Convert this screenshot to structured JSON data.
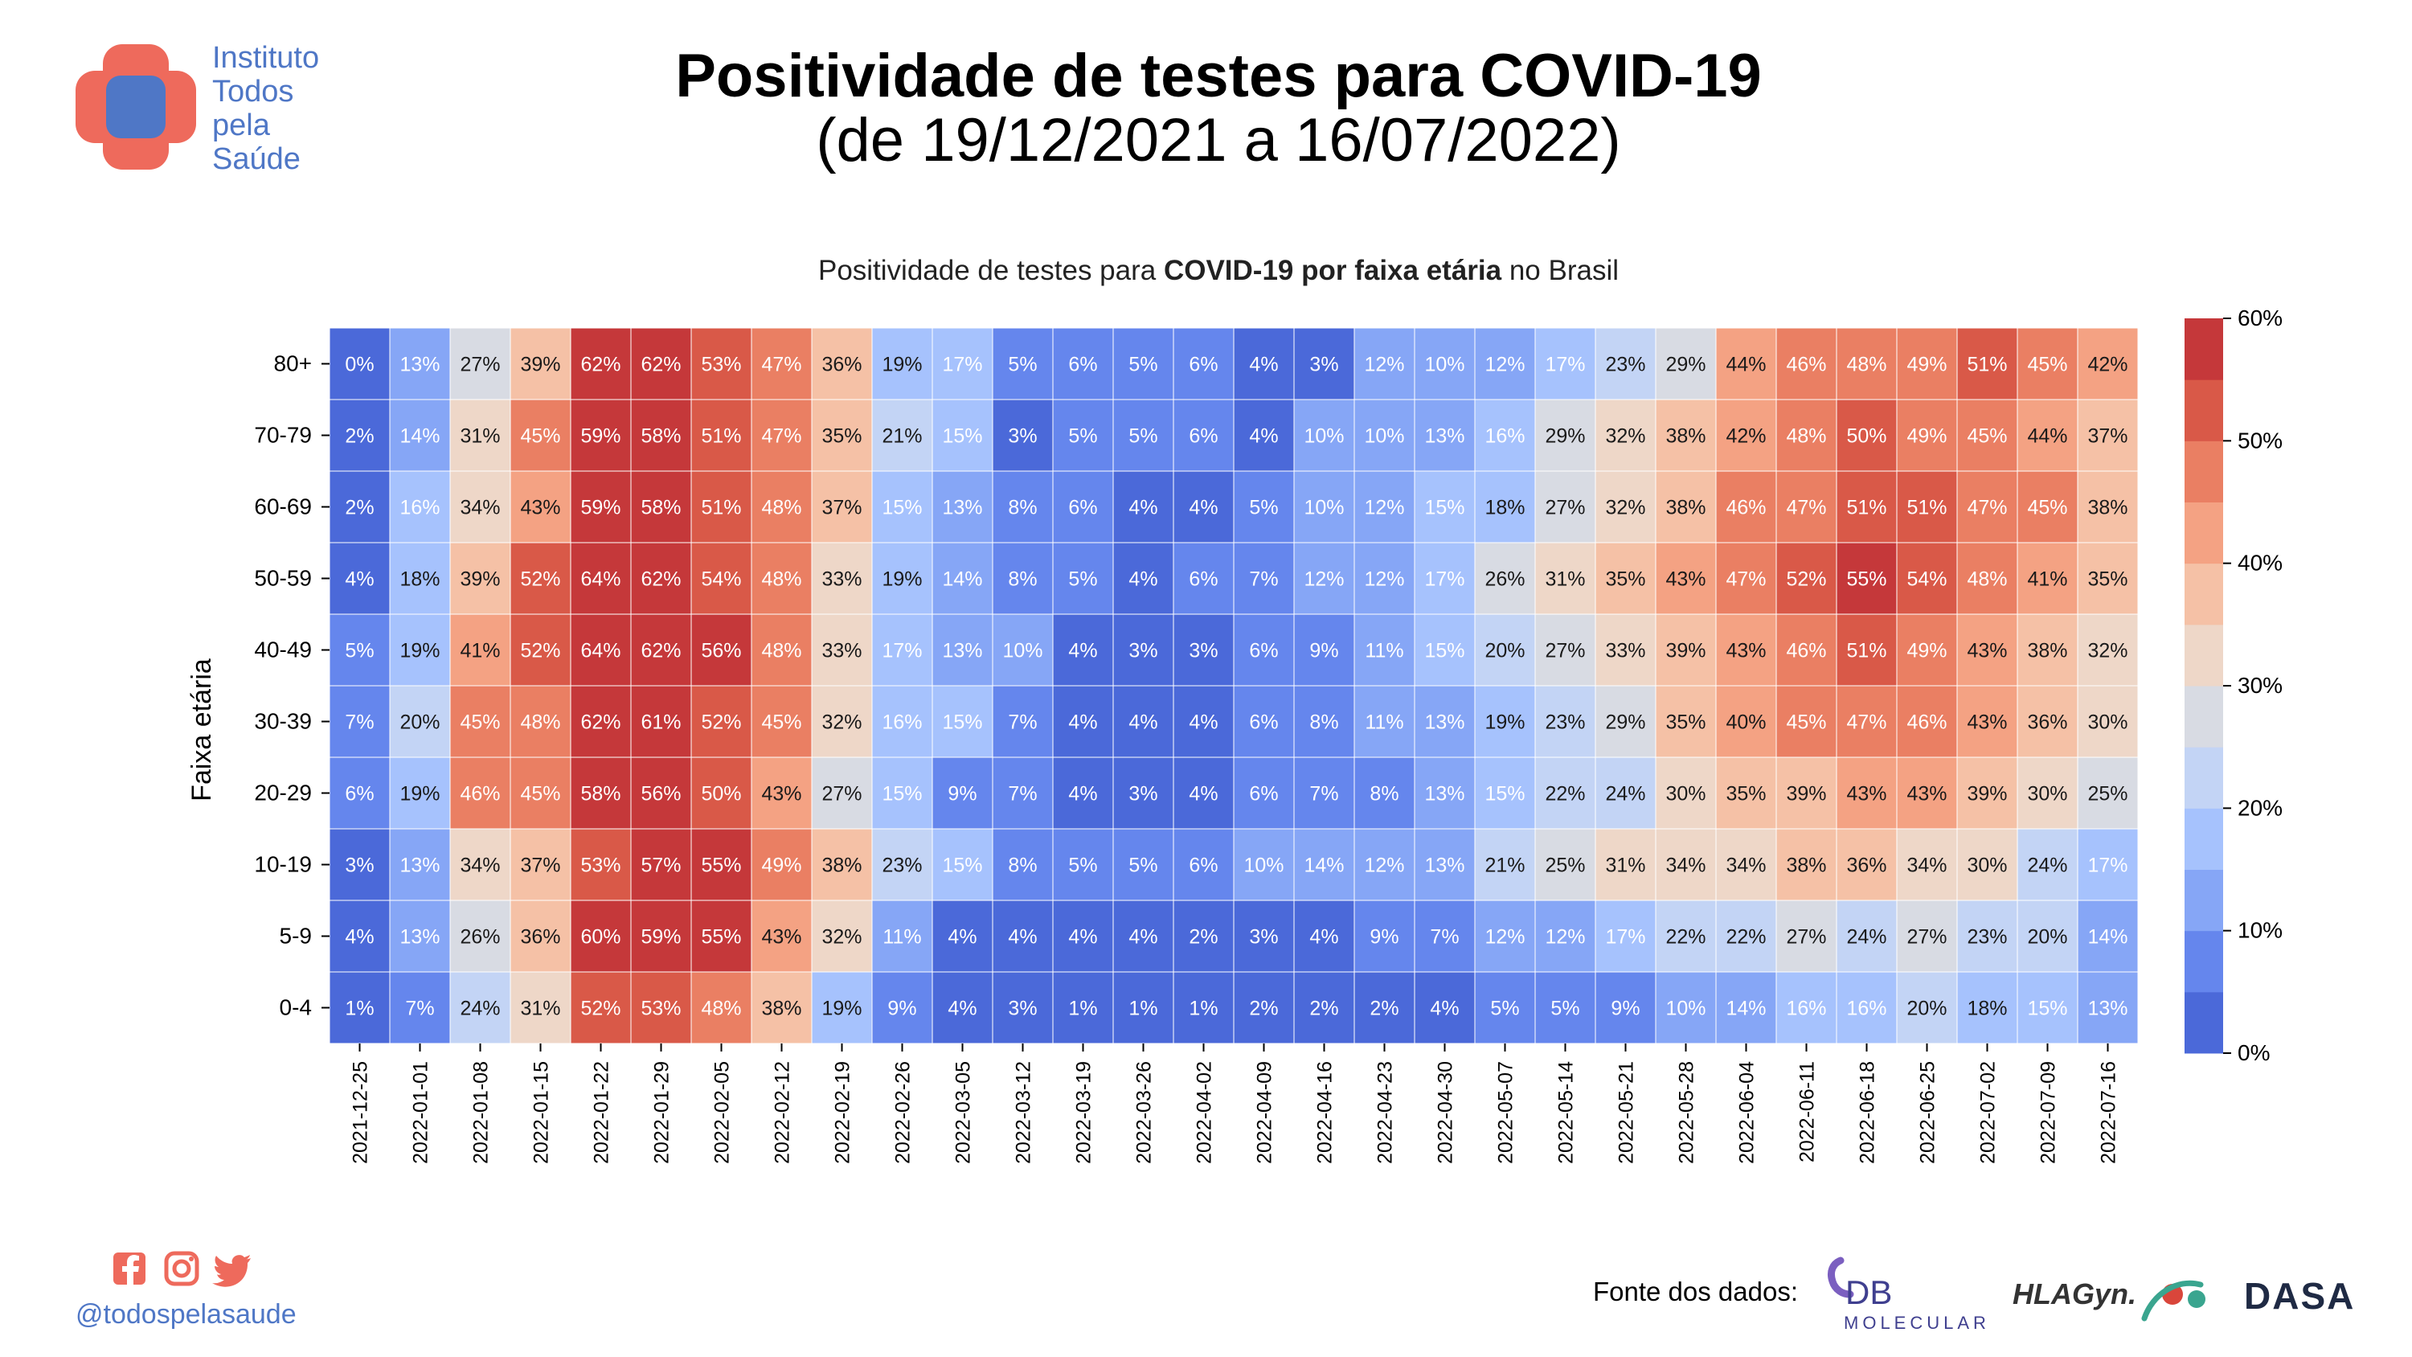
{
  "org": {
    "name_lines": [
      "Instituto",
      "Todos",
      "pela",
      "Saúde"
    ],
    "logo_colors": {
      "cross": "#ee6a5c",
      "center": "#4f77c6"
    }
  },
  "header": {
    "title": "Positividade de testes para COVID-19",
    "subtitle": "(de 19/12/2021 a 16/07/2022)"
  },
  "social": {
    "handle": "@todospelasaude",
    "icons": [
      "facebook-icon",
      "instagram-icon",
      "twitter-icon"
    ],
    "icon_color": "#ee6a5c"
  },
  "footer": {
    "source_label": "Fonte dos dados:",
    "logos": {
      "db": {
        "text": "DB",
        "subtext": "MOLECULAR"
      },
      "hlagyn": {
        "text": "HLAGyn."
      },
      "dasa": {
        "text": "DASA"
      }
    }
  },
  "chart_data": {
    "type": "heatmap",
    "title_parts": [
      {
        "text": "Positividade de testes para ",
        "bold": false
      },
      {
        "text": "COVID-19 por faixa etária",
        "bold": true
      },
      {
        "text": " no Brasil",
        "bold": false
      }
    ],
    "ylabel": "Faixa etária",
    "xlabel": "",
    "x": [
      "2021-12-25",
      "2022-01-01",
      "2022-01-08",
      "2022-01-15",
      "2022-01-22",
      "2022-01-29",
      "2022-02-05",
      "2022-02-12",
      "2022-02-19",
      "2022-02-26",
      "2022-03-05",
      "2022-03-12",
      "2022-03-19",
      "2022-03-26",
      "2022-04-02",
      "2022-04-09",
      "2022-04-16",
      "2022-04-23",
      "2022-04-30",
      "2022-05-07",
      "2022-05-14",
      "2022-05-21",
      "2022-05-28",
      "2022-06-04",
      "2022-06-11",
      "2022-06-18",
      "2022-06-25",
      "2022-07-02",
      "2022-07-09",
      "2022-07-16"
    ],
    "y": [
      "80+",
      "70-79",
      "60-69",
      "50-59",
      "40-49",
      "30-39",
      "20-29",
      "10-19",
      "5-9",
      "0-4"
    ],
    "values": [
      [
        0,
        13,
        27,
        39,
        62,
        62,
        53,
        47,
        36,
        19,
        17,
        5,
        6,
        5,
        6,
        4,
        3,
        12,
        10,
        12,
        17,
        23,
        29,
        44,
        46,
        48,
        49,
        51,
        45,
        42
      ],
      [
        2,
        14,
        31,
        45,
        59,
        58,
        51,
        47,
        35,
        21,
        15,
        3,
        5,
        5,
        6,
        4,
        10,
        10,
        13,
        16,
        29,
        32,
        38,
        42,
        48,
        50,
        49,
        45,
        44,
        37
      ],
      [
        2,
        16,
        34,
        43,
        59,
        58,
        51,
        48,
        37,
        15,
        13,
        8,
        6,
        4,
        4,
        5,
        10,
        12,
        15,
        18,
        27,
        32,
        38,
        46,
        47,
        51,
        51,
        47,
        45,
        38
      ],
      [
        4,
        18,
        39,
        52,
        64,
        62,
        54,
        48,
        33,
        19,
        14,
        8,
        5,
        4,
        6,
        7,
        12,
        12,
        17,
        26,
        31,
        35,
        43,
        47,
        52,
        55,
        54,
        48,
        41,
        35
      ],
      [
        5,
        19,
        41,
        52,
        64,
        62,
        56,
        48,
        33,
        17,
        13,
        10,
        4,
        3,
        3,
        6,
        9,
        11,
        15,
        20,
        27,
        33,
        39,
        43,
        46,
        51,
        49,
        43,
        38,
        32
      ],
      [
        7,
        20,
        45,
        48,
        62,
        61,
        52,
        45,
        32,
        16,
        15,
        7,
        4,
        4,
        4,
        6,
        8,
        11,
        13,
        19,
        23,
        29,
        35,
        40,
        45,
        47,
        46,
        43,
        36,
        30
      ],
      [
        6,
        19,
        46,
        45,
        58,
        56,
        50,
        43,
        27,
        15,
        9,
        7,
        4,
        3,
        4,
        6,
        7,
        8,
        13,
        15,
        22,
        24,
        30,
        35,
        39,
        43,
        43,
        39,
        30,
        25
      ],
      [
        3,
        13,
        34,
        37,
        53,
        57,
        55,
        49,
        38,
        23,
        15,
        8,
        5,
        5,
        6,
        10,
        14,
        12,
        13,
        21,
        25,
        31,
        34,
        34,
        38,
        36,
        34,
        30,
        24,
        17
      ],
      [
        4,
        13,
        26,
        36,
        60,
        59,
        55,
        43,
        32,
        11,
        4,
        4,
        4,
        4,
        2,
        3,
        4,
        9,
        7,
        12,
        12,
        17,
        22,
        22,
        27,
        24,
        27,
        23,
        20,
        14
      ],
      [
        1,
        7,
        24,
        31,
        52,
        53,
        48,
        38,
        19,
        9,
        4,
        3,
        1,
        1,
        1,
        2,
        2,
        2,
        4,
        5,
        5,
        9,
        10,
        14,
        16,
        16,
        20,
        18,
        15,
        13
      ]
    ],
    "value_suffix": "%",
    "colorbar": {
      "min": 0,
      "max": 60,
      "ticks": [
        "0%",
        "10%",
        "20%",
        "30%",
        "40%",
        "50%",
        "60%"
      ],
      "bins": [
        "#4b69d9",
        "#6586ed",
        "#86a6f6",
        "#a6c2fd",
        "#c3d4f5",
        "#d8dbe3",
        "#eed7c8",
        "#f5c1a6",
        "#f4a283",
        "#ea7f63",
        "#d95948",
        "#c5383a"
      ]
    },
    "grid": false
  }
}
